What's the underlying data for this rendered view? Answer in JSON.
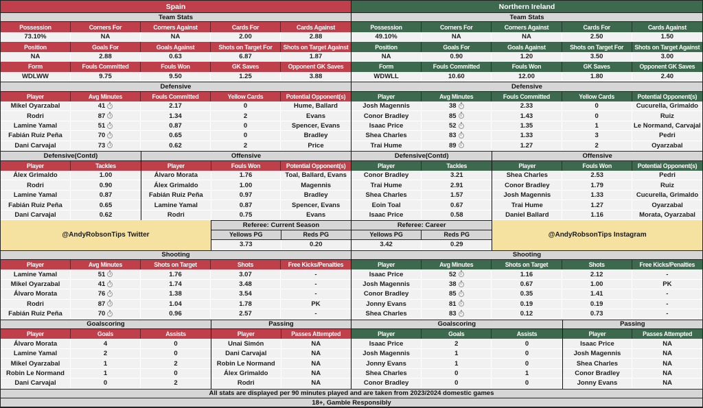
{
  "chart_data": {
    "type": "table",
    "footer": {
      "line1": "All stats are displayed per 90 minutes played and are taken from 2023/2024 domestic games",
      "line2": "18+, Gamble Responsibly"
    },
    "colors": {
      "spain_accent": "#bf3f4a",
      "northern_ireland_accent": "#3d6a4e",
      "section_title_bg": "#d6d6d6",
      "promo_bg": "#f5e2a0",
      "value_row_bg": "#f1f1f1"
    },
    "icons": {
      "avg_minutes_icon": "stopwatch"
    },
    "teams": [
      {
        "name": "Spain",
        "team_stats": {
          "title": "Team Stats",
          "rows": [
            {
              "headers": [
                "Possession",
                "Corners For",
                "Corners Against",
                "Cards For",
                "Cards Against"
              ],
              "values": [
                "73.10%",
                "NA",
                "NA",
                "2.00",
                "2.88"
              ]
            },
            {
              "headers": [
                "Position",
                "Goals For",
                "Goals Against",
                "Shots on Target For",
                "Shots on Target Against"
              ],
              "values": [
                "NA",
                "2.88",
                "0.63",
                "6.87",
                "1.87"
              ]
            },
            {
              "headers": [
                "Form",
                "Fouls Committed",
                "Fouls Won",
                "GK Saves",
                "Opponent GK Saves"
              ],
              "values": [
                "WDLWW",
                "9.75",
                "9.50",
                "1.25",
                "3.88"
              ]
            }
          ]
        },
        "defensive": {
          "title": "Defensive",
          "headers": [
            "Player",
            "Avg Minutes",
            "Fouls Committed",
            "Yellow Cards",
            "Potential Opponent(s)"
          ],
          "rows": [
            {
              "player": "Mikel Oyarzabal",
              "minutes": "41",
              "fouls": "2.17",
              "yellows": "0",
              "opponents": "Hume, Ballard"
            },
            {
              "player": "Rodri",
              "minutes": "87",
              "fouls": "1.34",
              "yellows": "2",
              "opponents": "Evans"
            },
            {
              "player": "Lamine Yamal",
              "minutes": "51",
              "fouls": "0.87",
              "yellows": "0",
              "opponents": "Spencer, Evans"
            },
            {
              "player": "Fabián Ruiz Peña",
              "minutes": "70",
              "fouls": "0.65",
              "yellows": "0",
              "opponents": "Bradley"
            },
            {
              "player": "Dani Carvajal",
              "minutes": "73",
              "fouls": "0.62",
              "yellows": "2",
              "opponents": "Price"
            }
          ]
        },
        "defensive_contd": {
          "title": "Defensive(Contd)",
          "headers": [
            "Player",
            "Tackles"
          ],
          "rows": [
            {
              "player": "Álex Grimaldo",
              "value": "1.00"
            },
            {
              "player": "Rodri",
              "value": "0.90"
            },
            {
              "player": "Lamine Yamal",
              "value": "0.87"
            },
            {
              "player": "Fabián Ruiz Peña",
              "value": "0.65"
            },
            {
              "player": "Dani Carvajal",
              "value": "0.62"
            }
          ]
        },
        "offensive": {
          "title": "Offensive",
          "headers": [
            "Player",
            "Fouls Won",
            "Potential Opponent(s)"
          ],
          "rows": [
            {
              "player": "Álvaro Morata",
              "value": "1.76",
              "opponents": "Toal, Ballard, Evans"
            },
            {
              "player": "Álex Grimaldo",
              "value": "1.00",
              "opponents": "Magennis"
            },
            {
              "player": "Fabián Ruiz Peña",
              "value": "0.97",
              "opponents": "Bradley"
            },
            {
              "player": "Lamine Yamal",
              "value": "0.87",
              "opponents": "Spencer, Evans"
            },
            {
              "player": "Rodri",
              "value": "0.75",
              "opponents": "Evans"
            }
          ]
        },
        "promo": "@AndyRobsonTips Twitter",
        "referee": {
          "title": "Referee: Current Season",
          "headers": [
            "Yellows PG",
            "Reds PG"
          ],
          "values": [
            "3.73",
            "0.20"
          ]
        },
        "shooting": {
          "title": "Shooting",
          "headers": [
            "Player",
            "Avg Minutes",
            "Shots on Target",
            "Shots",
            "Free Kicks/Penalties"
          ],
          "rows": [
            {
              "player": "Lamine Yamal",
              "minutes": "51",
              "sot": "1.76",
              "shots": "3.07",
              "fk": "-"
            },
            {
              "player": "Mikel Oyarzabal",
              "minutes": "41",
              "sot": "1.74",
              "shots": "3.48",
              "fk": "-"
            },
            {
              "player": "Álvaro Morata",
              "minutes": "76",
              "sot": "1.38",
              "shots": "3.54",
              "fk": "-"
            },
            {
              "player": "Rodri",
              "minutes": "87",
              "sot": "1.04",
              "shots": "1.78",
              "fk": "PK"
            },
            {
              "player": "Fabián Ruiz Peña",
              "minutes": "70",
              "sot": "0.96",
              "shots": "2.57",
              "fk": "-"
            }
          ]
        },
        "goalscoring": {
          "title": "Goalscoring",
          "headers": [
            "Player",
            "Goals",
            "Assists"
          ],
          "rows": [
            {
              "player": "Álvaro Morata",
              "goals": "4",
              "assists": "0"
            },
            {
              "player": "Lamine Yamal",
              "goals": "2",
              "assists": "0"
            },
            {
              "player": "Mikel Oyarzabal",
              "goals": "1",
              "assists": "2"
            },
            {
              "player": "Robin Le Normand",
              "goals": "1",
              "assists": "0"
            },
            {
              "player": "Dani Carvajal",
              "goals": "0",
              "assists": "2"
            }
          ]
        },
        "passing": {
          "title": "Passing",
          "headers": [
            "Player",
            "Passes Attempted"
          ],
          "rows": [
            {
              "player": "Unai Simón",
              "value": "NA"
            },
            {
              "player": "Dani Carvajal",
              "value": "NA"
            },
            {
              "player": "Robin Le Normand",
              "value": "NA"
            },
            {
              "player": "Álex Grimaldo",
              "value": "NA"
            },
            {
              "player": "Rodri",
              "value": "NA"
            }
          ]
        }
      },
      {
        "name": "Northern Ireland",
        "team_stats": {
          "title": "Team Stats",
          "rows": [
            {
              "headers": [
                "Possession",
                "Corners For",
                "Corners Against",
                "Cards For",
                "Cards Against"
              ],
              "values": [
                "49.10%",
                "NA",
                "NA",
                "2.50",
                "1.50"
              ]
            },
            {
              "headers": [
                "Position",
                "Goals For",
                "Goals Against",
                "Shots on Target For",
                "Shots on Target Against"
              ],
              "values": [
                "NA",
                "0.90",
                "1.20",
                "3.50",
                "3.00"
              ]
            },
            {
              "headers": [
                "Form",
                "Fouls Committed",
                "Fouls Won",
                "GK Saves",
                "Opponent GK Saves"
              ],
              "values": [
                "WDWLL",
                "10.60",
                "12.00",
                "1.80",
                "2.40"
              ]
            }
          ]
        },
        "defensive": {
          "title": "Defensive",
          "headers": [
            "Player",
            "Avg Minutes",
            "Fouls Committed",
            "Yellow Cards",
            "Potential Opponent(s)"
          ],
          "rows": [
            {
              "player": "Josh Magennis",
              "minutes": "38",
              "fouls": "2.33",
              "yellows": "0",
              "opponents": "Cucurella, Grimaldo"
            },
            {
              "player": "Conor Bradley",
              "minutes": "85",
              "fouls": "1.43",
              "yellows": "0",
              "opponents": "Ruiz"
            },
            {
              "player": "Isaac Price",
              "minutes": "52",
              "fouls": "1.35",
              "yellows": "1",
              "opponents": "Le Normand, Carvajal"
            },
            {
              "player": "Shea Charles",
              "minutes": "83",
              "fouls": "1.33",
              "yellows": "3",
              "opponents": "Pedri"
            },
            {
              "player": "Trai Hume",
              "minutes": "89",
              "fouls": "1.27",
              "yellows": "2",
              "opponents": "Oyarzabal"
            }
          ]
        },
        "defensive_contd": {
          "title": "Defensive(Contd)",
          "headers": [
            "Player",
            "Tackles"
          ],
          "rows": [
            {
              "player": "Conor Bradley",
              "value": "3.21"
            },
            {
              "player": "Trai Hume",
              "value": "2.91"
            },
            {
              "player": "Shea Charles",
              "value": "1.57"
            },
            {
              "player": "Eoin Toal",
              "value": "0.67"
            },
            {
              "player": "Isaac Price",
              "value": "0.58"
            }
          ]
        },
        "offensive": {
          "title": "Offensive",
          "headers": [
            "Player",
            "Fouls Won",
            "Potential Opponent(s)"
          ],
          "rows": [
            {
              "player": "Shea Charles",
              "value": "2.53",
              "opponents": "Pedri"
            },
            {
              "player": "Conor Bradley",
              "value": "1.79",
              "opponents": "Ruiz"
            },
            {
              "player": "Josh Magennis",
              "value": "1.33",
              "opponents": "Cucurella, Grimaldo"
            },
            {
              "player": "Trai Hume",
              "value": "1.27",
              "opponents": "Oyarzabal"
            },
            {
              "player": "Daniel Ballard",
              "value": "1.16",
              "opponents": "Morata, Oyarzabal"
            }
          ]
        },
        "promo": "@AndyRobsonTips Instagram",
        "referee": {
          "title": "Referee: Career",
          "headers": [
            "Yellows PG",
            "Reds PG"
          ],
          "values": [
            "3.42",
            "0.29"
          ]
        },
        "shooting": {
          "title": "Shooting",
          "headers": [
            "Player",
            "Avg Minutes",
            "Shots on Target",
            "Shots",
            "Free Kicks/Penalties"
          ],
          "rows": [
            {
              "player": "Isaac Price",
              "minutes": "52",
              "sot": "1.16",
              "shots": "2.12",
              "fk": "-"
            },
            {
              "player": "Josh Magennis",
              "minutes": "38",
              "sot": "0.67",
              "shots": "1.00",
              "fk": "PK"
            },
            {
              "player": "Conor Bradley",
              "minutes": "85",
              "sot": "0.35",
              "shots": "1.41",
              "fk": "-"
            },
            {
              "player": "Jonny Evans",
              "minutes": "81",
              "sot": "0.19",
              "shots": "0.19",
              "fk": "-"
            },
            {
              "player": "Shea Charles",
              "minutes": "83",
              "sot": "0.12",
              "shots": "0.73",
              "fk": "-"
            }
          ]
        },
        "goalscoring": {
          "title": "Goalscoring",
          "headers": [
            "Player",
            "Goals",
            "Assists"
          ],
          "rows": [
            {
              "player": "Isaac Price",
              "goals": "2",
              "assists": "0"
            },
            {
              "player": "Josh Magennis",
              "goals": "1",
              "assists": "0"
            },
            {
              "player": "Jonny Evans",
              "goals": "1",
              "assists": "0"
            },
            {
              "player": "Shea Charles",
              "goals": "0",
              "assists": "1"
            },
            {
              "player": "Conor Bradley",
              "goals": "0",
              "assists": "0"
            }
          ]
        },
        "passing": {
          "title": "Passing",
          "headers": [
            "Player",
            "Passes Attempted"
          ],
          "rows": [
            {
              "player": "Isaac Price",
              "value": "NA"
            },
            {
              "player": "Josh Magennis",
              "value": "NA"
            },
            {
              "player": "Shea Charles",
              "value": "NA"
            },
            {
              "player": "Conor Bradley",
              "value": "NA"
            },
            {
              "player": "Jonny Evans",
              "value": "NA"
            }
          ]
        }
      }
    ]
  }
}
